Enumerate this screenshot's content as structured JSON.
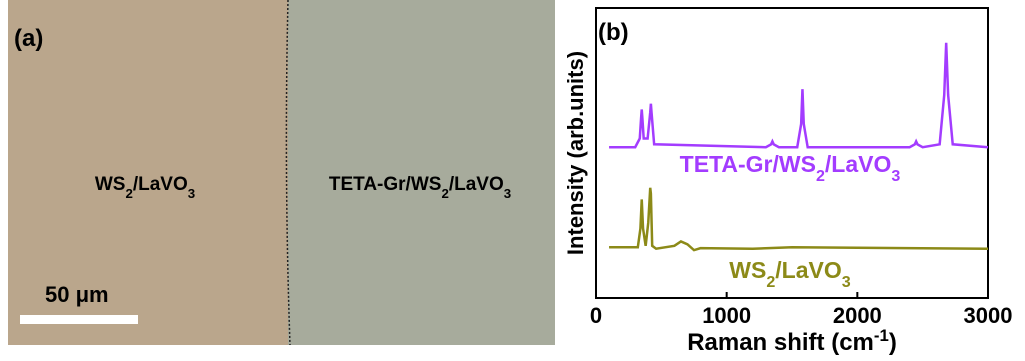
{
  "panel_a": {
    "label": "(a)",
    "left_region": [
      {
        "text": "WS"
      },
      {
        "text": "2",
        "sub": true
      },
      {
        "text": "/LaVO"
      },
      {
        "text": "3",
        "sub": true
      }
    ],
    "right_region": [
      {
        "text": "TETA-Gr/WS"
      },
      {
        "text": "2",
        "sub": true
      },
      {
        "text": "/LaVO"
      },
      {
        "text": "3",
        "sub": true
      }
    ],
    "scale_bar": "50 μm"
  },
  "chart_data": {
    "type": "line",
    "label": "(b)",
    "x_label": [
      {
        "text": "Raman shift (cm"
      },
      {
        "text": "-1",
        "sup": true
      },
      {
        "text": ")"
      }
    ],
    "y_label": "Intensity (arb.units)",
    "xlim": [
      0,
      3000
    ],
    "xticks": [
      0,
      1000,
      2000,
      3000
    ],
    "ylim": [
      0,
      10
    ],
    "series": [
      {
        "name": [
          {
            "text": "TETA-Gr/WS"
          },
          {
            "text": "2",
            "sub": true
          },
          {
            "text": "/LaVO"
          },
          {
            "text": "3",
            "sub": true
          }
        ],
        "color": "#a33cff",
        "x": [
          100,
          300,
          335,
          345,
          350,
          355,
          365,
          395,
          415,
          420,
          425,
          445,
          1300,
          1340,
          1350,
          1360,
          1400,
          1540,
          1570,
          1580,
          1590,
          1620,
          2400,
          2440,
          2450,
          2460,
          2500,
          2630,
          2665,
          2680,
          2695,
          2730,
          3000
        ],
        "values": [
          5.2,
          5.2,
          5.5,
          6.2,
          6.5,
          6.2,
          5.5,
          5.5,
          6.4,
          6.7,
          6.4,
          5.3,
          5.2,
          5.3,
          5.4,
          5.3,
          5.2,
          5.2,
          6.0,
          7.2,
          6.0,
          5.2,
          5.2,
          5.3,
          5.4,
          5.3,
          5.2,
          5.3,
          7.0,
          8.8,
          7.0,
          5.3,
          5.2
        ]
      },
      {
        "name": [
          {
            "text": "WS"
          },
          {
            "text": "2",
            "sub": true
          },
          {
            "text": "/LaVO"
          },
          {
            "text": "3",
            "sub": true
          }
        ],
        "color": "#8c8a18",
        "x": [
          100,
          320,
          340,
          350,
          360,
          380,
          400,
          415,
          420,
          430,
          460,
          600,
          650,
          700,
          750,
          800,
          1200,
          1500,
          3000
        ],
        "values": [
          1.75,
          1.75,
          2.4,
          3.4,
          2.4,
          1.8,
          2.6,
          3.8,
          3.6,
          1.8,
          1.7,
          1.8,
          1.95,
          1.85,
          1.65,
          1.72,
          1.7,
          1.75,
          1.7
        ]
      }
    ]
  }
}
